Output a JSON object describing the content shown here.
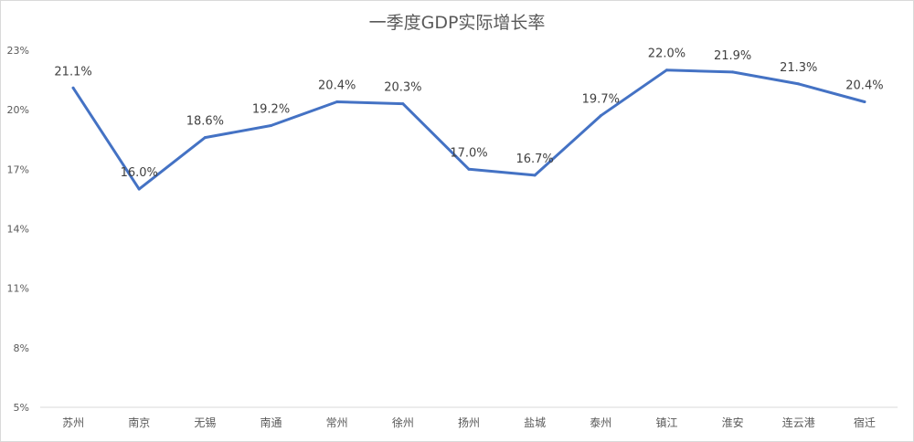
{
  "chart_data": {
    "type": "line",
    "title": "一季度GDP实际增长率",
    "categories": [
      "苏州",
      "南京",
      "无锡",
      "南通",
      "常州",
      "徐州",
      "扬州",
      "盐城",
      "泰州",
      "镇江",
      "淮安",
      "连云港",
      "宿迁"
    ],
    "series": [
      {
        "values": [
          21.1,
          16.0,
          18.6,
          19.2,
          20.4,
          20.3,
          17.0,
          16.7,
          19.7,
          22.0,
          21.9,
          21.3,
          20.4
        ],
        "labels": [
          "21.1%",
          "16.0%",
          "18.6%",
          "19.2%",
          "20.4%",
          "20.3%",
          "17.0%",
          "16.7%",
          "19.7%",
          "22.0%",
          "21.9%",
          "21.3%",
          "20.4%"
        ],
        "color": "#4472c4"
      }
    ],
    "ylim": [
      5,
      23
    ],
    "yticks": [
      5,
      8,
      11,
      14,
      17,
      20,
      23
    ],
    "ytick_labels": [
      "5%",
      "8%",
      "11%",
      "14%",
      "17%",
      "20%",
      "23%"
    ],
    "grid": false,
    "legend": "none",
    "xlabel": "",
    "ylabel": ""
  }
}
